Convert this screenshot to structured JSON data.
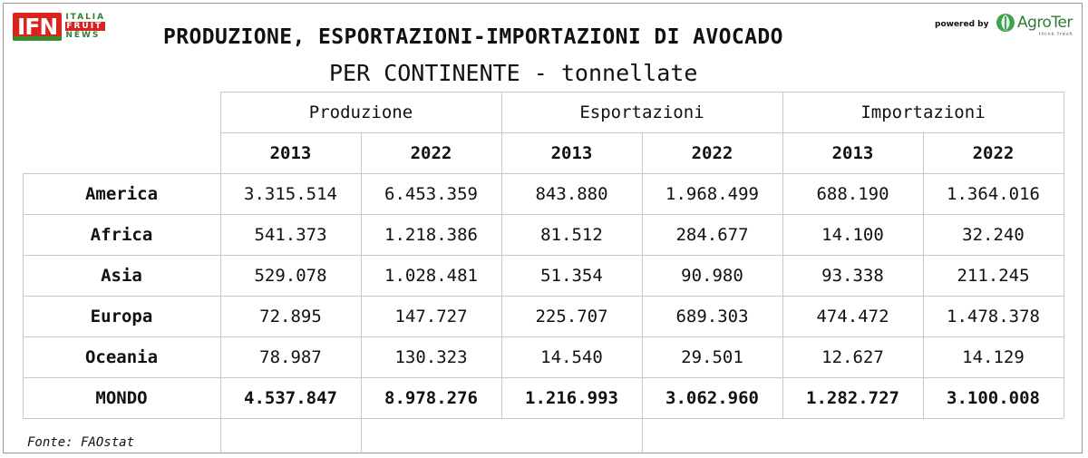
{
  "logo": {
    "mark": "IFN",
    "line1": "ITALIA",
    "line2": "FRUIT",
    "line3": "NEWS"
  },
  "title": "PRODUZIONE, ESPORTAZIONI-IMPORTAZIONI DI AVOCADO",
  "subtitle": "PER CONTINENTE - tonnellate",
  "powered_by": "powered by",
  "sponsor": {
    "name": "AgroTer",
    "tagline": "think fresh"
  },
  "table": {
    "groups": [
      "Produzione",
      "Esportazioni",
      "Importazioni"
    ],
    "years": [
      "2013",
      "2022",
      "2013",
      "2022",
      "2013",
      "2022"
    ],
    "rows": [
      {
        "label": "America",
        "values": [
          "3.315.514",
          "6.453.359",
          "843.880",
          "1.968.499",
          "688.190",
          "1.364.016"
        ]
      },
      {
        "label": "Africa",
        "values": [
          "541.373",
          "1.218.386",
          "81.512",
          "284.677",
          "14.100",
          "32.240"
        ]
      },
      {
        "label": "Asia",
        "values": [
          "529.078",
          "1.028.481",
          "51.354",
          "90.980",
          "93.338",
          "211.245"
        ]
      },
      {
        "label": "Europa",
        "values": [
          "72.895",
          "147.727",
          "225.707",
          "689.303",
          "474.472",
          "1.478.378"
        ]
      },
      {
        "label": "Oceania",
        "values": [
          "78.987",
          "130.323",
          "14.540",
          "29.501",
          "12.627",
          "14.129"
        ]
      },
      {
        "label": "MONDO",
        "values": [
          "4.537.847",
          "8.978.276",
          "1.216.993",
          "3.062.960",
          "1.282.727",
          "3.100.008"
        ],
        "bold": true
      }
    ]
  },
  "source": "Fonte: FAOstat",
  "colors": {
    "brand_red": "#d9231f",
    "brand_green": "#2e7d32",
    "grid": "#c8c8c8"
  }
}
